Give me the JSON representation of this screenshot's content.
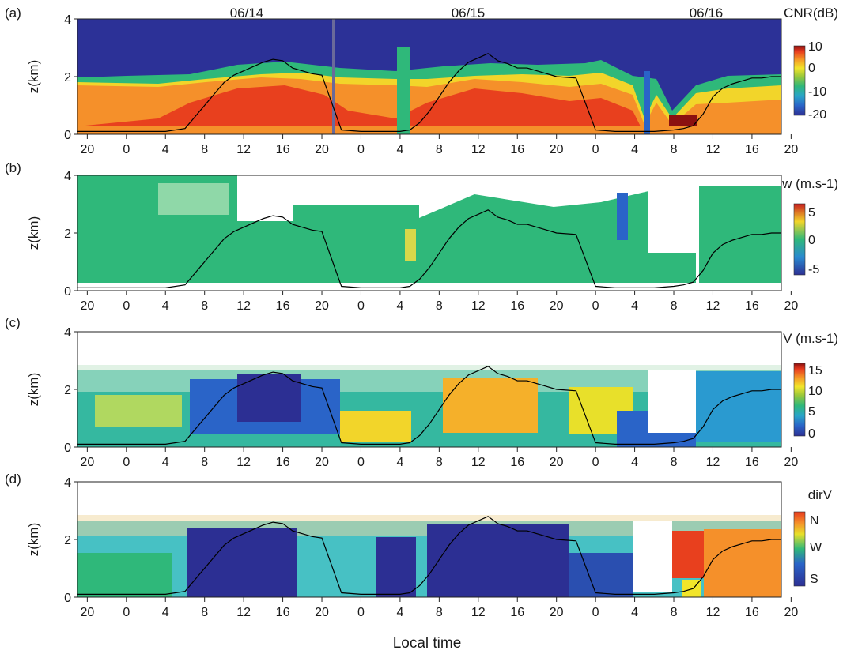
{
  "figure": {
    "xlabel": "Local time",
    "date_labels": [
      "06/14",
      "06/15",
      "06/16"
    ],
    "x_tick_labels": [
      "20",
      "0",
      "4",
      "8",
      "12",
      "16",
      "20",
      "0",
      "4",
      "8",
      "12",
      "16",
      "20",
      "0",
      "4",
      "8",
      "12",
      "16",
      "20"
    ]
  },
  "chart_data": [
    {
      "type": "heatmap",
      "panel_label": "(a)",
      "variable": "CNR(dB)",
      "ylabel": "z(km)",
      "yticks": [
        "0",
        "2",
        "4"
      ],
      "ylim": [
        0,
        4
      ],
      "x_range_hours": [
        -5,
        67
      ],
      "colorbar": {
        "ticks": [
          "10",
          "0",
          "-10",
          "-20"
        ],
        "range": [
          -20,
          10
        ]
      },
      "background_color": "#2c3197",
      "layers": [
        {
          "name": "aerosol layer top",
          "x": [
            -5,
            0,
            4,
            6,
            8,
            10,
            12,
            14,
            16,
            18,
            20,
            22,
            24,
            26,
            28,
            30,
            32,
            34,
            36,
            38,
            40,
            42,
            44,
            46,
            48,
            50,
            52,
            53,
            54,
            56,
            58,
            60,
            62,
            64,
            66,
            67
          ],
          "y": [
            1.8,
            1.85,
            1.9,
            2.0,
            2.2,
            2.45,
            2.55,
            2.6,
            2.55,
            2.45,
            2.3,
            2.3,
            2.25,
            2.1,
            2.25,
            2.4,
            2.7,
            2.9,
            2.9,
            2.75,
            2.6,
            2.7,
            2.7,
            2.6,
            2.6,
            2.6,
            2.4,
            2.0,
            1.0,
            1.0,
            0.6,
            1.5,
            1.8,
            1.9,
            2.0,
            2.0
          ]
        }
      ]
    },
    {
      "type": "heatmap",
      "panel_label": "(b)",
      "variable": "w (m.s-1)",
      "ylabel": "z(km)",
      "yticks": [
        "0",
        "2",
        "4"
      ],
      "ylim": [
        0,
        4
      ],
      "x_range_hours": [
        -5,
        67
      ],
      "colorbar": {
        "ticks": [
          "5",
          "0",
          "-5"
        ],
        "range": [
          -6,
          6
        ]
      },
      "background_color": "#2fb05c"
    },
    {
      "type": "heatmap",
      "panel_label": "(c)",
      "variable": "V (m.s-1)",
      "ylabel": "z(km)",
      "yticks": [
        "0",
        "2",
        "4"
      ],
      "ylim": [
        0,
        4
      ],
      "x_range_hours": [
        -5,
        67
      ],
      "colorbar": {
        "ticks": [
          "15",
          "10",
          "5",
          "0"
        ],
        "range": [
          0,
          15
        ]
      },
      "background_color": "#35b8a0"
    },
    {
      "type": "heatmap",
      "panel_label": "(d)",
      "variable": "dirV",
      "ylabel": "z(km)",
      "yticks": [
        "0",
        "2",
        "4"
      ],
      "ylim": [
        0,
        4
      ],
      "x_range_hours": [
        -5,
        67
      ],
      "colorbar": {
        "ticks": [
          "N",
          "W",
          "S"
        ],
        "range": [
          "S",
          "N"
        ]
      },
      "background_color": "#47c1c4"
    }
  ],
  "overlay": {
    "name": "boundary layer height",
    "x": [
      -5,
      0,
      4,
      6,
      7,
      8,
      9,
      10,
      11,
      12,
      13,
      14,
      15,
      16,
      17,
      18,
      19,
      20,
      22,
      24,
      26,
      28,
      29,
      30,
      31,
      32,
      33,
      34,
      35,
      36,
      37,
      38,
      39,
      40,
      41,
      42,
      43,
      44,
      46,
      48,
      50,
      52,
      54,
      56,
      57,
      58,
      59,
      60,
      61,
      62,
      63,
      64,
      65,
      66,
      67
    ],
    "y": [
      0.1,
      0.1,
      0.1,
      0.2,
      0.6,
      1.0,
      1.4,
      1.8,
      2.05,
      2.2,
      2.35,
      2.5,
      2.6,
      2.55,
      2.3,
      2.2,
      2.1,
      2.05,
      0.15,
      0.1,
      0.1,
      0.1,
      0.15,
      0.4,
      0.8,
      1.3,
      1.8,
      2.2,
      2.5,
      2.65,
      2.8,
      2.55,
      2.45,
      2.3,
      2.3,
      2.2,
      2.1,
      2.0,
      1.95,
      0.15,
      0.1,
      0.1,
      0.1,
      0.15,
      0.2,
      0.3,
      0.7,
      1.3,
      1.6,
      1.75,
      1.85,
      1.95,
      1.95,
      2.0,
      2.0
    ],
    "color": "#000000"
  },
  "colormaps": {
    "jet": [
      "#2c2f93",
      "#2a64c8",
      "#2aa5c8",
      "#2fb87a",
      "#9ac83a",
      "#f2e52a",
      "#f59a25",
      "#e83a1e",
      "#8b1010"
    ]
  }
}
